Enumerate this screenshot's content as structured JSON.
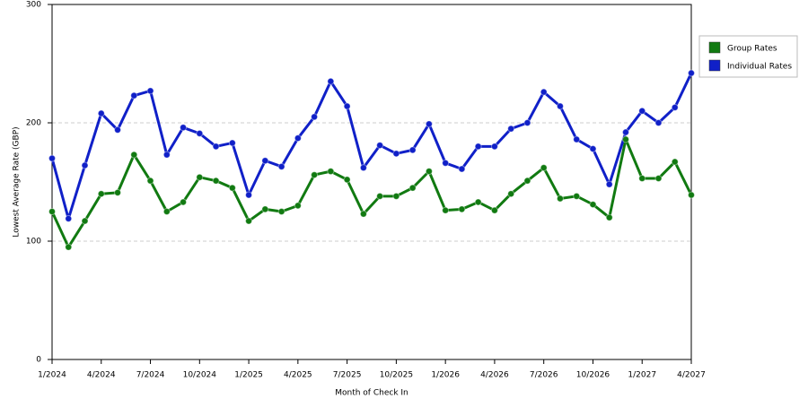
{
  "chart_data": {
    "type": "line",
    "x_label": "Month of Check In",
    "y_label": "Lowest Average Rate (GBP)",
    "categories": [
      "1/2024",
      null,
      null,
      "4/2024",
      null,
      null,
      "7/2024",
      null,
      null,
      "10/2024",
      null,
      null,
      "1/2025",
      null,
      null,
      "4/2025",
      null,
      null,
      "7/2025",
      null,
      null,
      "10/2025",
      null,
      null,
      "1/2026",
      null,
      null,
      "4/2026",
      null,
      null,
      "7/2026",
      null,
      null,
      "10/2026",
      null,
      null,
      "1/2027",
      null,
      null,
      "4/2027"
    ],
    "series": [
      {
        "name": "Group Rates",
        "color": "#117a11",
        "values": [
          125,
          95,
          117,
          140,
          141,
          173,
          151,
          125,
          133,
          154,
          151,
          145,
          117,
          127,
          125,
          130,
          156,
          159,
          152,
          123,
          138,
          138,
          145,
          159,
          126,
          127,
          133,
          126,
          140,
          151,
          162,
          136,
          138,
          131,
          120,
          186,
          153,
          153,
          167,
          139
        ]
      },
      {
        "name": "Individual Rates",
        "color": "#1020c8",
        "values": [
          170,
          119,
          164,
          208,
          194,
          223,
          227,
          173,
          196,
          191,
          180,
          183,
          139,
          168,
          163,
          187,
          205,
          235,
          214,
          162,
          181,
          174,
          177,
          199,
          166,
          161,
          180,
          180,
          195,
          200,
          226,
          214,
          186,
          178,
          148,
          192,
          210,
          200,
          213,
          242
        ]
      }
    ],
    "ylim": [
      0,
      300
    ],
    "yticks": [
      0,
      100,
      200,
      300
    ],
    "grid": true,
    "legend": "right"
  }
}
